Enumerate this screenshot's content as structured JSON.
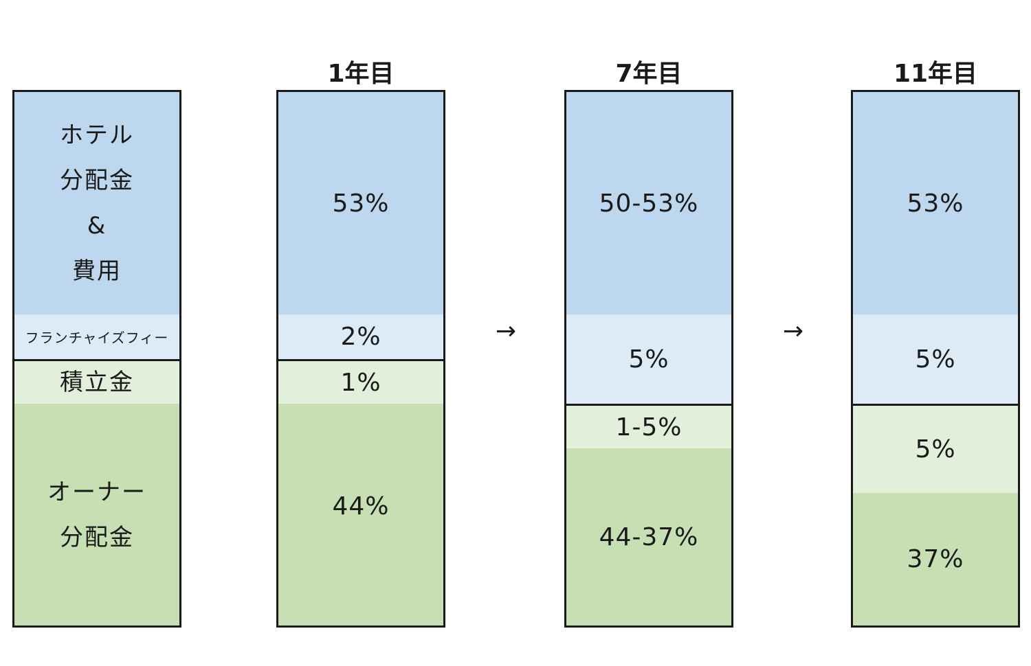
{
  "legend": {
    "hotel_lines": [
      "ホテル",
      "分配金",
      "&",
      "費用"
    ],
    "franchise": "フランチャイズフィー",
    "reserve": "積立金",
    "owner_lines": [
      "オーナー",
      "分配金"
    ]
  },
  "columns": [
    {
      "header": "1年目",
      "hotel": "53%",
      "franchise": "2%",
      "reserve": "1%",
      "owner": "44%"
    },
    {
      "header": "7年目",
      "hotel": "50-53%",
      "franchise": "5%",
      "reserve": "1-5%",
      "owner": "44-37%"
    },
    {
      "header": "11年目",
      "hotel": "53%",
      "franchise": "5%",
      "reserve": "5%",
      "owner": "37%"
    }
  ],
  "arrows": [
    "→",
    "→"
  ],
  "colors": {
    "hotel": "#bdd7ee",
    "franchise": "#ddebf7",
    "reserve": "#e2efda",
    "owner": "#c6e0b4",
    "border": "#1a1a1a"
  }
}
